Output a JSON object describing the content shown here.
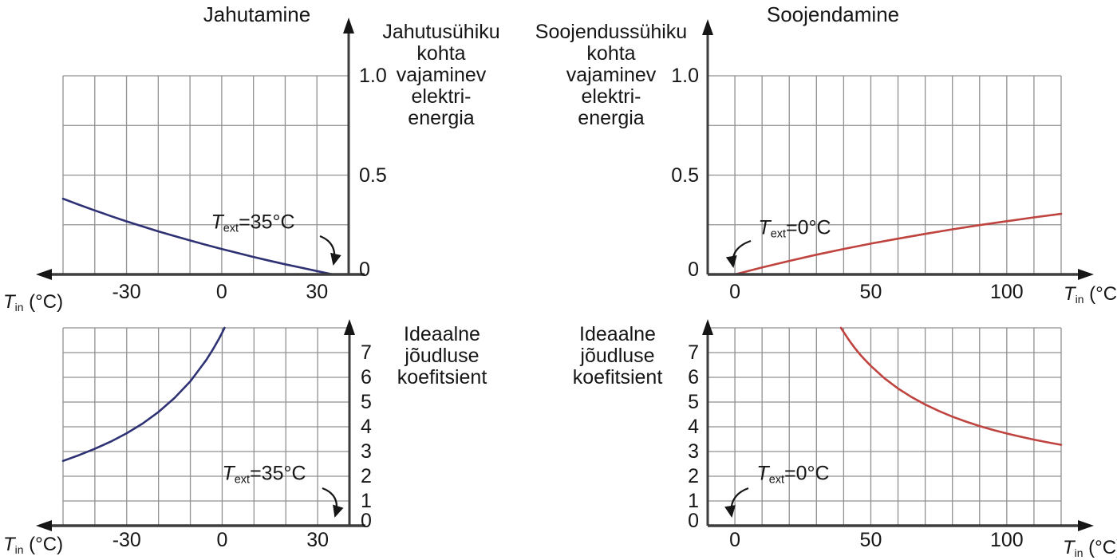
{
  "titles": {
    "left": "Jahutamine",
    "right": "Soojendamine"
  },
  "side_labels": {
    "cooling_energy": "Jahutusühiku\nkohta\nvajaminev\nelektri-\nenergia",
    "heating_energy": "Soojendussühiku\nkohta\nvajaminev\nelektri-\nenergia",
    "cop_cooling": "Ideaalne\njõudluse\nkoefitsient",
    "cop_heating": "Ideaalne\njõudluse\nkoefitsient"
  },
  "axis_label": {
    "var": "T",
    "sub": "in",
    "rest": " (°C)"
  },
  "annotations": {
    "cooling": {
      "var": "T",
      "sub": "ext",
      "rest": "=35°C"
    },
    "heating": {
      "var": "T",
      "sub": "ext",
      "rest": "=0°C"
    }
  },
  "colors": {
    "cooling_curve": "#2e3274",
    "heating_curve": "#bf4440",
    "grid": "#909090",
    "axis": "#3d3d3d",
    "arrow": "#161616",
    "text": "#161616",
    "background": "#ffffff"
  },
  "chart_data": [
    {
      "id": "cooling-energy",
      "type": "line",
      "title": "Jahutamine",
      "ylabel": "Jahutusühiku kohta vajaminev elektri-energia",
      "xlabel": "T_in (°C)",
      "annotation": "T_ext=35°C",
      "color": "#2e3274",
      "grid": true,
      "xlim": [
        -50,
        40
      ],
      "ylim": [
        0,
        1
      ],
      "grid_step_x": 10,
      "grid_step_y": 0.25,
      "xticks": [
        -30,
        0,
        30
      ],
      "xtick_labels": [
        "-30",
        "0",
        "30"
      ],
      "yticks": [
        0,
        0.5,
        1
      ],
      "ytick_labels": [
        "0",
        "0.5",
        "1.0"
      ],
      "x": [
        -50,
        -45,
        -40,
        -35,
        -30,
        -25,
        -20,
        -15,
        -10,
        -5,
        0,
        5,
        10,
        15,
        20,
        25,
        30,
        35
      ],
      "y": [
        0.381,
        0.351,
        0.322,
        0.294,
        0.267,
        0.242,
        0.217,
        0.194,
        0.171,
        0.149,
        0.128,
        0.108,
        0.088,
        0.069,
        0.051,
        0.034,
        0.017,
        0
      ]
    },
    {
      "id": "heating-energy",
      "type": "line",
      "title": "Soojendamine",
      "ylabel": "Soojendussühiku kohta vajaminev elektri-energia",
      "xlabel": "T_in (°C)",
      "annotation": "T_ext=0°C",
      "color": "#bf4440",
      "grid": true,
      "xlim": [
        -10,
        120
      ],
      "ylim": [
        0,
        1
      ],
      "grid_step_x": 10,
      "grid_step_y": 0.25,
      "xticks": [
        0,
        50,
        100
      ],
      "xtick_labels": [
        "0",
        "50",
        "100"
      ],
      "yticks": [
        0,
        0.5,
        1
      ],
      "ytick_labels": [
        "0",
        "0.5",
        "1.0"
      ],
      "x": [
        0,
        10,
        20,
        30,
        40,
        50,
        60,
        70,
        80,
        90,
        100,
        110,
        120
      ],
      "y": [
        0,
        0.035,
        0.068,
        0.099,
        0.128,
        0.155,
        0.18,
        0.204,
        0.227,
        0.248,
        0.268,
        0.287,
        0.305
      ]
    },
    {
      "id": "cooling-cop",
      "type": "line",
      "title": "Jahutamine",
      "ylabel": "Ideaalne jõudluse koefitsient",
      "xlabel": "T_in (°C)",
      "annotation": "T_ext=35°C",
      "color": "#2e3274",
      "grid": true,
      "xlim": [
        -50,
        40
      ],
      "ylim": [
        0,
        8
      ],
      "grid_step_x": 10,
      "grid_step_y": 1,
      "xticks": [
        -30,
        0,
        30
      ],
      "xtick_labels": [
        "-30",
        "0",
        "30"
      ],
      "yticks": [
        0,
        1,
        2,
        3,
        4,
        5,
        6,
        7
      ],
      "ytick_labels": [
        "0",
        "1",
        "2",
        "3",
        "4",
        "5",
        "6",
        "7"
      ],
      "x": [
        -50,
        -45,
        -40,
        -35,
        -30,
        -25,
        -20,
        -15,
        -10,
        -5,
        -3,
        -1,
        0,
        0.75
      ],
      "y": [
        2.62,
        2.85,
        3.11,
        3.4,
        3.74,
        4.13,
        4.6,
        5.16,
        5.84,
        6.7,
        7.11,
        7.56,
        7.8,
        8.0
      ]
    },
    {
      "id": "heating-cop",
      "type": "line",
      "title": "Soojendamine",
      "ylabel": "Ideaalne jõudluse koefitsient",
      "xlabel": "T_in (°C)",
      "annotation": "T_ext=0°C",
      "color": "#bf4440",
      "grid": true,
      "xlim": [
        -10,
        120
      ],
      "ylim": [
        0,
        8
      ],
      "grid_step_x": 10,
      "grid_step_y": 1,
      "xticks": [
        0,
        50,
        100
      ],
      "xtick_labels": [
        "0",
        "50",
        "100"
      ],
      "yticks": [
        0,
        1,
        2,
        3,
        4,
        5,
        6,
        7
      ],
      "ytick_labels": [
        "0",
        "1",
        "2",
        "3",
        "4",
        "5",
        "6",
        "7"
      ],
      "x": [
        39,
        40,
        42,
        44,
        46,
        48,
        50,
        55,
        60,
        65,
        70,
        75,
        80,
        85,
        90,
        95,
        100,
        105,
        110,
        115,
        120
      ],
      "y": [
        8.0,
        7.83,
        7.5,
        7.2,
        6.93,
        6.69,
        6.46,
        5.96,
        5.55,
        5.2,
        4.9,
        4.64,
        4.41,
        4.21,
        4.03,
        3.87,
        3.73,
        3.6,
        3.48,
        3.37,
        3.27
      ]
    }
  ]
}
